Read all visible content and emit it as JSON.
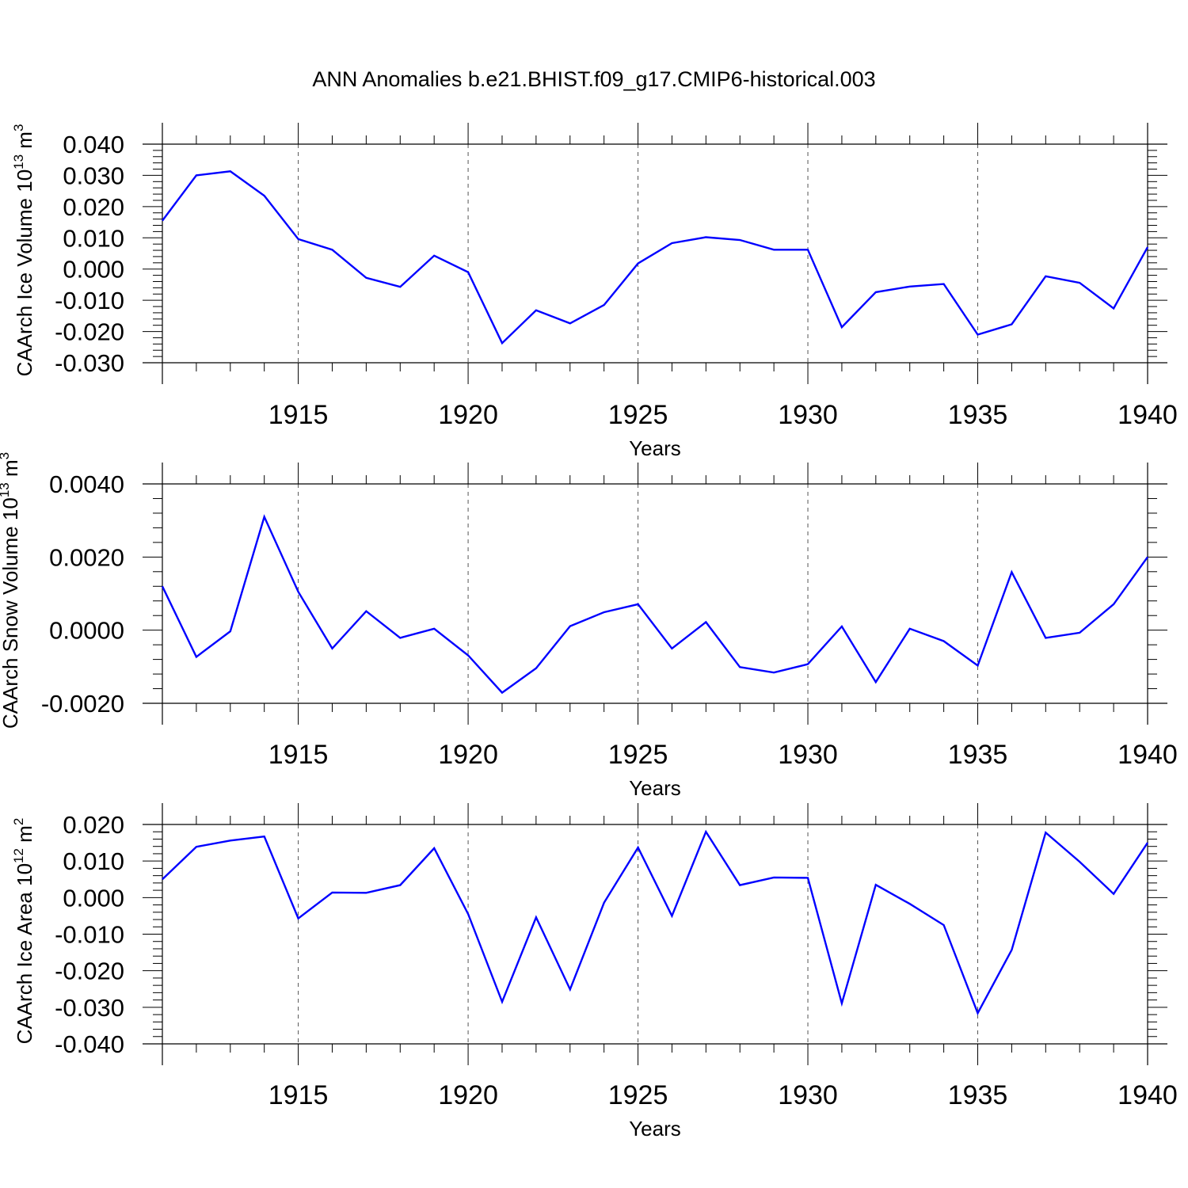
{
  "title": "ANN Anomalies b.e21.BHIST.f09_g17.CMIP6-historical.003",
  "line_color": "#0000ff",
  "chart_data": [
    {
      "type": "line",
      "ylabel": {
        "text": "CAArch Ice Volume 10",
        "sup": "13",
        "unit": "m",
        "unit_sup": "3"
      },
      "xlabel": "Years",
      "xlim": [
        1911,
        1940
      ],
      "ylim": [
        -0.03,
        0.04
      ],
      "yticks": [
        -0.03,
        -0.02,
        -0.01,
        0.0,
        0.01,
        0.02,
        0.03,
        0.04
      ],
      "ytick_labels": [
        "-0.030",
        "-0.020",
        "-0.010",
        "0.000",
        "0.010",
        "0.020",
        "0.030",
        "0.040"
      ],
      "xticks": [
        1915,
        1920,
        1925,
        1930,
        1935,
        1940
      ],
      "xtick_labels": [
        "1915",
        "1920",
        "1925",
        "1930",
        "1935",
        "1940"
      ],
      "grid": "vertical dashed at labeled years",
      "x": [
        1911,
        1912,
        1913,
        1914,
        1915,
        1916,
        1917,
        1918,
        1919,
        1920,
        1921,
        1922,
        1923,
        1924,
        1925,
        1926,
        1927,
        1928,
        1929,
        1930,
        1931,
        1932,
        1933,
        1934,
        1935,
        1936,
        1937,
        1938,
        1939,
        1940
      ],
      "values": [
        0.0155,
        0.03,
        0.0313,
        0.0235,
        0.0096,
        0.0062,
        -0.0028,
        -0.0057,
        0.0043,
        -0.001,
        -0.0237,
        -0.0132,
        -0.0174,
        -0.0115,
        0.0018,
        0.0083,
        0.0102,
        0.0093,
        0.0062,
        0.0062,
        -0.0186,
        -0.0074,
        -0.0056,
        -0.0048,
        -0.021,
        -0.0177,
        -0.0023,
        -0.0044,
        -0.0126,
        0.007
      ]
    },
    {
      "type": "line",
      "ylabel": {
        "text": "CAArch Snow Volume 10",
        "sup": "13",
        "unit": "m",
        "unit_sup": "3"
      },
      "xlabel": "Years",
      "xlim": [
        1911,
        1940
      ],
      "ylim": [
        -0.002,
        0.004
      ],
      "yticks": [
        -0.002,
        0.0,
        0.002,
        0.004
      ],
      "ytick_labels": [
        "-0.0020",
        "0.0000",
        "0.0020",
        "0.0040"
      ],
      "xticks": [
        1915,
        1920,
        1925,
        1930,
        1935,
        1940
      ],
      "xtick_labels": [
        "1915",
        "1920",
        "1925",
        "1930",
        "1935",
        "1940"
      ],
      "grid": "vertical dashed at labeled years",
      "x": [
        1911,
        1912,
        1913,
        1914,
        1915,
        1916,
        1917,
        1918,
        1919,
        1920,
        1921,
        1922,
        1923,
        1924,
        1925,
        1926,
        1927,
        1928,
        1929,
        1930,
        1931,
        1932,
        1933,
        1934,
        1935,
        1936,
        1937,
        1938,
        1939,
        1940
      ],
      "values": [
        0.0012,
        -0.00073,
        -3e-05,
        0.0031,
        0.00105,
        -0.0005,
        0.00052,
        -0.00021,
        4e-05,
        -0.00069,
        -0.00171,
        -0.00104,
        0.00011,
        0.00049,
        0.00071,
        -0.0005,
        0.00022,
        -0.00101,
        -0.00116,
        -0.00093,
        0.0001,
        -0.00142,
        4e-05,
        -0.0003,
        -0.00097,
        0.00159,
        -0.00021,
        -7e-05,
        0.00071,
        0.002
      ]
    },
    {
      "type": "line",
      "ylabel": {
        "text": "CAArch Ice Area 10",
        "sup": "12",
        "unit": "m",
        "unit_sup": "2"
      },
      "xlabel": "Years",
      "xlim": [
        1911,
        1940
      ],
      "ylim": [
        -0.04,
        0.02
      ],
      "yticks": [
        -0.04,
        -0.03,
        -0.02,
        -0.01,
        0.0,
        0.01,
        0.02
      ],
      "ytick_labels": [
        "-0.040",
        "-0.030",
        "-0.020",
        "-0.010",
        "0.000",
        "0.010",
        "0.020"
      ],
      "xticks": [
        1915,
        1920,
        1925,
        1930,
        1935,
        1940
      ],
      "xtick_labels": [
        "1915",
        "1920",
        "1925",
        "1930",
        "1935",
        "1940"
      ],
      "grid": "vertical dashed at labeled years",
      "x": [
        1911,
        1912,
        1913,
        1914,
        1915,
        1916,
        1917,
        1918,
        1919,
        1920,
        1921,
        1922,
        1923,
        1924,
        1925,
        1926,
        1927,
        1928,
        1929,
        1930,
        1931,
        1932,
        1933,
        1934,
        1935,
        1936,
        1937,
        1938,
        1939,
        1940
      ],
      "values": [
        0.005,
        0.0139,
        0.0156,
        0.0167,
        -0.0057,
        0.0014,
        0.0013,
        0.0034,
        0.0135,
        -0.0045,
        -0.0285,
        -0.0054,
        -0.0251,
        -0.0014,
        0.0137,
        -0.005,
        0.018,
        0.0034,
        0.0055,
        0.0054,
        -0.0289,
        0.0035,
        -0.0017,
        -0.0075,
        -0.0316,
        -0.0143,
        0.0178,
        0.0098,
        0.001,
        0.015
      ]
    }
  ]
}
